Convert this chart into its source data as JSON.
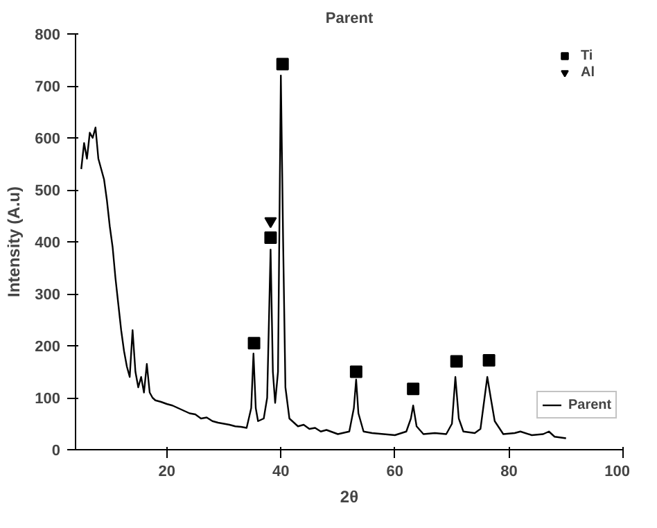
{
  "chart_data": {
    "type": "line",
    "title": "Parent",
    "xlabel": "2θ",
    "ylabel": "Intensity (A.u)",
    "xlim": [
      4,
      100
    ],
    "ylim": [
      0,
      800
    ],
    "xticks": [
      20,
      40,
      60,
      80,
      100
    ],
    "yticks": [
      0,
      100,
      200,
      300,
      400,
      500,
      600,
      700,
      800
    ],
    "grid": false,
    "legend": "right",
    "series": [
      {
        "name": "Parent",
        "color": "#000000",
        "marker": "none",
        "line_style": "solid",
        "x": [
          5,
          5.5,
          6,
          6.5,
          7,
          7.5,
          8,
          8.5,
          9,
          9.5,
          10,
          10.5,
          11,
          11.5,
          12,
          12.5,
          13,
          13.5,
          14,
          14.5,
          15,
          15.5,
          16,
          16.5,
          17,
          17.5,
          18,
          19,
          20,
          21,
          22,
          23,
          24,
          25,
          26,
          27,
          28,
          29,
          30,
          31,
          32,
          33,
          34,
          34.8,
          35.2,
          35.6,
          36,
          37,
          37.6,
          38.2,
          38.6,
          39,
          39.5,
          40,
          40.4,
          40.8,
          41.5,
          42,
          43,
          44,
          45,
          46,
          47,
          48,
          50,
          52,
          52.8,
          53.2,
          53.6,
          54.5,
          56,
          58,
          60,
          62,
          62.8,
          63.2,
          63.8,
          65,
          67,
          69,
          70,
          70.6,
          71.2,
          72,
          74,
          75,
          76.2,
          76.8,
          77.5,
          79,
          81,
          82,
          84,
          86,
          87,
          88,
          90
        ],
        "values": [
          540,
          590,
          560,
          610,
          600,
          620,
          560,
          540,
          520,
          480,
          430,
          390,
          330,
          280,
          230,
          190,
          160,
          140,
          230,
          150,
          120,
          140,
          110,
          165,
          110,
          100,
          95,
          92,
          88,
          85,
          80,
          75,
          70,
          68,
          60,
          62,
          55,
          52,
          50,
          48,
          45,
          44,
          42,
          80,
          185,
          80,
          55,
          60,
          100,
          385,
          150,
          90,
          150,
          720,
          400,
          120,
          60,
          55,
          45,
          48,
          40,
          42,
          35,
          38,
          30,
          35,
          80,
          135,
          70,
          35,
          32,
          30,
          28,
          35,
          60,
          85,
          45,
          30,
          32,
          30,
          50,
          140,
          60,
          35,
          32,
          40,
          140,
          100,
          55,
          30,
          32,
          35,
          28,
          30,
          35,
          25,
          22
        ]
      },
      {
        "name": "Ti",
        "type": "scatter",
        "color": "#000000",
        "marker": "square",
        "x": [
          35.3,
          38.2,
          40.3,
          53.2,
          63.2,
          70.8,
          76.5
        ],
        "values": [
          205,
          408,
          742,
          150,
          117,
          170,
          172
        ]
      },
      {
        "name": "Al",
        "type": "scatter",
        "color": "#000000",
        "marker": "triangle",
        "x": [
          38.2
        ],
        "values": [
          440
        ]
      }
    ]
  }
}
